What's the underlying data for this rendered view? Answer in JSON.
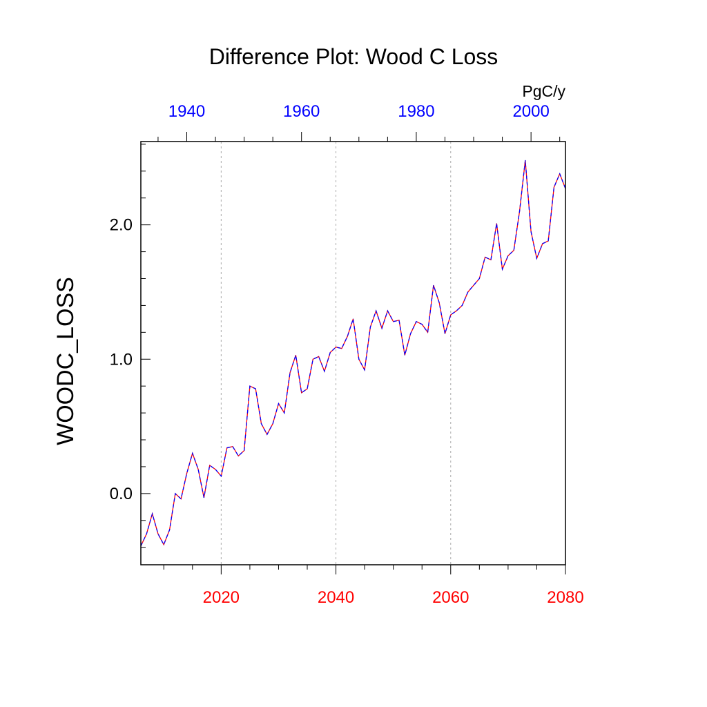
{
  "chart_data": {
    "type": "line",
    "title": "Difference Plot: Wood C Loss",
    "ylabel": "WOODC_LOSS",
    "units": "PgC/y",
    "colors": {
      "bottom_axis": "#ff0000",
      "top_axis": "#0000ff",
      "line_red": "#ff0000",
      "line_blue": "#0000ff"
    },
    "xlim": [
      2006,
      2080
    ],
    "ylim": [
      -0.53,
      2.62
    ],
    "grid": "vertical dotted lines at major bottom ticks",
    "bottom_axis": {
      "ticks": [
        2020,
        2040,
        2060,
        2080
      ],
      "labels": [
        "2020",
        "2040",
        "2060",
        "2080"
      ],
      "minor_step": 5
    },
    "top_axis": {
      "offset_years": 74,
      "ticks": [
        1940,
        1960,
        1980,
        2000
      ],
      "labels": [
        "1940",
        "1960",
        "1980",
        "2000"
      ],
      "minor_step": 5
    },
    "y_axis": {
      "ticks": [
        0.0,
        1.0,
        2.0
      ],
      "labels": [
        "0.0",
        "1.0",
        "2.0"
      ],
      "minor_step": 0.2
    },
    "series": [
      {
        "x": [
          2006,
          2007,
          2008,
          2009,
          2010,
          2011,
          2012,
          2013,
          2014,
          2015,
          2016,
          2017,
          2018,
          2019,
          2020,
          2021,
          2022,
          2023,
          2024,
          2025,
          2026,
          2027,
          2028,
          2029,
          2030,
          2031,
          2032,
          2033,
          2034,
          2035,
          2036,
          2037,
          2038,
          2039,
          2040,
          2041,
          2042,
          2043,
          2044,
          2045,
          2046,
          2047,
          2048,
          2049,
          2050,
          2051,
          2052,
          2053,
          2054,
          2055,
          2056,
          2057,
          2058,
          2059,
          2060,
          2061,
          2062,
          2063,
          2064,
          2065,
          2066,
          2067,
          2068,
          2069,
          2070,
          2071,
          2072,
          2073,
          2074,
          2075,
          2076,
          2077,
          2078,
          2079,
          2080
        ],
        "y": [
          -0.39,
          -0.3,
          -0.15,
          -0.3,
          -0.38,
          -0.27,
          0.0,
          -0.04,
          0.15,
          0.3,
          0.18,
          -0.03,
          0.21,
          0.18,
          0.13,
          0.34,
          0.35,
          0.28,
          0.32,
          0.8,
          0.78,
          0.52,
          0.44,
          0.52,
          0.67,
          0.6,
          0.9,
          1.03,
          0.75,
          0.78,
          1.0,
          1.02,
          0.91,
          1.05,
          1.09,
          1.08,
          1.17,
          1.3,
          1.0,
          0.92,
          1.24,
          1.36,
          1.23,
          1.36,
          1.28,
          1.29,
          1.03,
          1.19,
          1.28,
          1.26,
          1.2,
          1.55,
          1.42,
          1.19,
          1.33,
          1.36,
          1.4,
          1.5,
          1.55,
          1.6,
          1.76,
          1.74,
          2.01,
          1.67,
          1.77,
          1.81,
          2.1,
          2.48,
          1.95,
          1.75,
          1.86,
          1.88,
          2.28,
          2.38,
          2.27
        ]
      }
    ]
  }
}
